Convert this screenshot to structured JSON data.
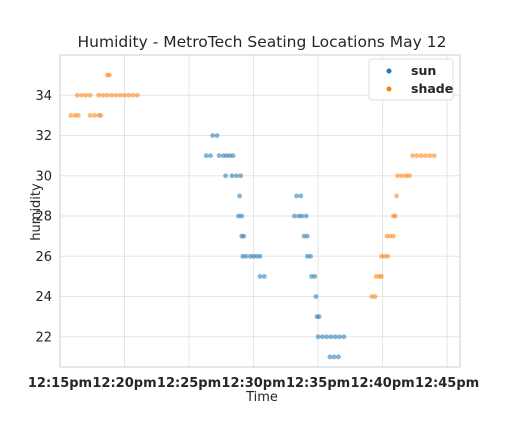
{
  "chart_data": {
    "type": "scatter",
    "title": "Humidity - MetroTech Seating Locations May 12",
    "xlabel": "Time",
    "ylabel": "humidity",
    "x_unit": "time of day (pm)",
    "xlim": [
      "12:15",
      "12:46"
    ],
    "ylim": [
      20.5,
      36.0
    ],
    "xticks": [
      "12:15pm",
      "12:20pm",
      "12:25pm",
      "12:30pm",
      "12:35pm",
      "12:40pm",
      "12:45pm"
    ],
    "yticks": [
      22,
      24,
      26,
      28,
      30,
      32,
      34
    ],
    "grid": true,
    "legend_position": "top-right",
    "colors": {
      "sun": "#1f77b4",
      "shade": "#ff7f0e"
    },
    "series": [
      {
        "name": "sun",
        "points": [
          [
            "12:26:50",
            32
          ],
          [
            "12:27:10",
            32
          ],
          [
            "12:26:20",
            31
          ],
          [
            "12:26:40",
            31
          ],
          [
            "12:27:20",
            31
          ],
          [
            "12:27:40",
            31
          ],
          [
            "12:27:55",
            31
          ],
          [
            "12:28:10",
            31
          ],
          [
            "12:28:25",
            31
          ],
          [
            "12:27:50",
            30
          ],
          [
            "12:28:20",
            30
          ],
          [
            "12:28:40",
            30
          ],
          [
            "12:29:00",
            30
          ],
          [
            "12:28:55",
            29
          ],
          [
            "12:28:50",
            28
          ],
          [
            "12:29:05",
            28
          ],
          [
            "12:29:05",
            27
          ],
          [
            "12:29:15",
            27
          ],
          [
            "12:29:10",
            26
          ],
          [
            "12:29:25",
            26
          ],
          [
            "12:29:45",
            26
          ],
          [
            "12:30:00",
            26
          ],
          [
            "12:30:15",
            26
          ],
          [
            "12:30:30",
            26
          ],
          [
            "12:30:30",
            25
          ],
          [
            "12:30:50",
            25
          ],
          [
            "12:33:20",
            29
          ],
          [
            "12:33:40",
            29
          ],
          [
            "12:33:10",
            28
          ],
          [
            "12:33:30",
            28
          ],
          [
            "12:33:45",
            28
          ],
          [
            "12:34:05",
            28
          ],
          [
            "12:33:55",
            27
          ],
          [
            "12:34:10",
            27
          ],
          [
            "12:34:10",
            26
          ],
          [
            "12:34:25",
            26
          ],
          [
            "12:34:30",
            25
          ],
          [
            "12:34:45",
            25
          ],
          [
            "12:34:50",
            24
          ],
          [
            "12:34:55",
            23
          ],
          [
            "12:35:05",
            23
          ],
          [
            "12:35:00",
            22
          ],
          [
            "12:35:20",
            22
          ],
          [
            "12:35:40",
            22
          ],
          [
            "12:36:00",
            22
          ],
          [
            "12:36:20",
            22
          ],
          [
            "12:36:40",
            22
          ],
          [
            "12:37:00",
            22
          ],
          [
            "12:35:55",
            21
          ],
          [
            "12:36:15",
            21
          ],
          [
            "12:36:35",
            21
          ]
        ]
      },
      {
        "name": "shade",
        "points": [
          [
            "12:18:40",
            35
          ],
          [
            "12:18:50",
            35
          ],
          [
            "12:16:20",
            34
          ],
          [
            "12:16:40",
            34
          ],
          [
            "12:17:00",
            34
          ],
          [
            "12:17:20",
            34
          ],
          [
            "12:18:00",
            34
          ],
          [
            "12:18:20",
            34
          ],
          [
            "12:18:40",
            34
          ],
          [
            "12:19:00",
            34
          ],
          [
            "12:19:20",
            34
          ],
          [
            "12:19:40",
            34
          ],
          [
            "12:20:00",
            34
          ],
          [
            "12:20:20",
            34
          ],
          [
            "12:20:40",
            34
          ],
          [
            "12:21:00",
            34
          ],
          [
            "12:15:50",
            33
          ],
          [
            "12:16:10",
            33
          ],
          [
            "12:16:25",
            33
          ],
          [
            "12:17:20",
            33
          ],
          [
            "12:17:40",
            33
          ],
          [
            "12:18:00",
            33
          ],
          [
            "12:18:10",
            33
          ],
          [
            "12:39:10",
            24
          ],
          [
            "12:39:25",
            24
          ],
          [
            "12:39:30",
            25
          ],
          [
            "12:39:45",
            25
          ],
          [
            "12:39:55",
            25
          ],
          [
            "12:39:55",
            26
          ],
          [
            "12:40:10",
            26
          ],
          [
            "12:40:25",
            26
          ],
          [
            "12:40:20",
            27
          ],
          [
            "12:40:35",
            27
          ],
          [
            "12:40:50",
            27
          ],
          [
            "12:40:50",
            28
          ],
          [
            "12:41:00",
            28
          ],
          [
            "12:41:05",
            29
          ],
          [
            "12:41:10",
            30
          ],
          [
            "12:41:30",
            30
          ],
          [
            "12:41:50",
            30
          ],
          [
            "12:42:05",
            30
          ],
          [
            "12:42:20",
            31
          ],
          [
            "12:42:40",
            31
          ],
          [
            "12:43:00",
            31
          ],
          [
            "12:43:20",
            31
          ],
          [
            "12:43:40",
            31
          ],
          [
            "12:44:00",
            31
          ]
        ]
      }
    ]
  }
}
